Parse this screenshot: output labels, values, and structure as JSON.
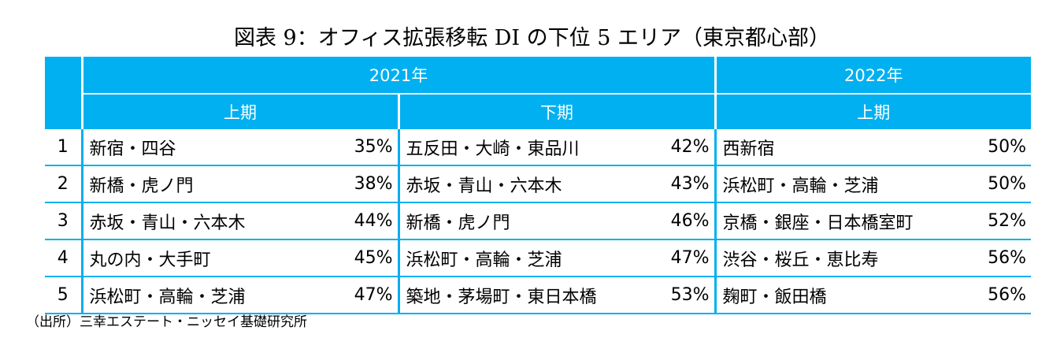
{
  "title": "図表 9：オフィス拡張移転 DI の下位 5 エリア（東京都心部）",
  "headers": {
    "year_2021": "2021年",
    "year_2022": "2022年",
    "h1_2021": "上期",
    "h2_2021": "下期",
    "h1_2022": "上期"
  },
  "rows": [
    {
      "rank": "1",
      "a_area": "新宿・四谷",
      "a_pct": "35%",
      "b_area": "五反田・大崎・東品川",
      "b_pct": "42%",
      "c_area": "西新宿",
      "c_pct": "50%"
    },
    {
      "rank": "2",
      "a_area": "新橋・虎ノ門",
      "a_pct": "38%",
      "b_area": "赤坂・青山・六本木",
      "b_pct": "43%",
      "c_area": "浜松町・高輪・芝浦",
      "c_pct": "50%"
    },
    {
      "rank": "3",
      "a_area": "赤坂・青山・六本木",
      "a_pct": "44%",
      "b_area": "新橋・虎ノ門",
      "b_pct": "46%",
      "c_area": "京橋・銀座・日本橋室町",
      "c_pct": "52%"
    },
    {
      "rank": "4",
      "a_area": "丸の内・大手町",
      "a_pct": "45%",
      "b_area": "浜松町・高輪・芝浦",
      "b_pct": "47%",
      "c_area": "渋谷・桜丘・恵比寿",
      "c_pct": "56%"
    },
    {
      "rank": "5",
      "a_area": "浜松町・高輪・芝浦",
      "a_pct": "47%",
      "b_area": "築地・茅場町・東日本橋",
      "b_pct": "53%",
      "c_area": "麹町・飯田橋",
      "c_pct": "56%"
    }
  ],
  "source": "（出所）三幸エステート・ニッセイ基礎研究所"
}
